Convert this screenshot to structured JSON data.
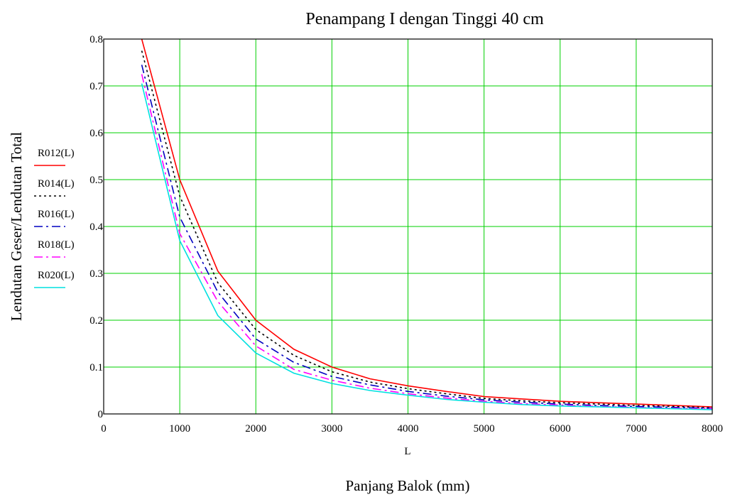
{
  "chart_data": {
    "type": "line",
    "title": "Penampang I dengan Tinggi 40 cm",
    "xlabel": "Panjang Balok (mm)",
    "xvar": "L",
    "ylabel": "Lendutan Geser/Lendutan Total",
    "xlim": [
      0,
      8000
    ],
    "ylim": [
      0,
      0.8
    ],
    "xticks": [
      "0",
      "1000",
      "2000",
      "3000",
      "4000",
      "5000",
      "6000",
      "7000",
      "8000"
    ],
    "yticks": [
      "0",
      "0.1",
      "0.2",
      "0.3",
      "0.4",
      "0.5",
      "0.6",
      "0.7",
      "0.8"
    ],
    "grid": true,
    "legend_position": "left",
    "x": [
      500,
      1000,
      1500,
      2000,
      2500,
      3000,
      3500,
      4000,
      4500,
      5000,
      5500,
      6000,
      6500,
      7000,
      7500,
      8000
    ],
    "series": [
      {
        "name": "R012(L)",
        "color": "#ff0000",
        "dash": "solid",
        "values": [
          0.8,
          0.5,
          0.305,
          0.2,
          0.138,
          0.1,
          0.075,
          0.06,
          0.048,
          0.037,
          0.032,
          0.027,
          0.024,
          0.021,
          0.018,
          0.015
        ]
      },
      {
        "name": "R014(L)",
        "color": "#000000",
        "dash": "dotted",
        "values": [
          0.775,
          0.465,
          0.28,
          0.18,
          0.125,
          0.09,
          0.068,
          0.054,
          0.043,
          0.033,
          0.028,
          0.024,
          0.021,
          0.018,
          0.016,
          0.013
        ]
      },
      {
        "name": "R016(L)",
        "color": "#0000c0",
        "dash": "dashdot",
        "values": [
          0.745,
          0.42,
          0.26,
          0.16,
          0.11,
          0.08,
          0.062,
          0.048,
          0.038,
          0.03,
          0.025,
          0.021,
          0.018,
          0.016,
          0.014,
          0.012
        ]
      },
      {
        "name": "R018(L)",
        "color": "#ff00ff",
        "dash": "dashdot",
        "values": [
          0.725,
          0.385,
          0.24,
          0.145,
          0.095,
          0.072,
          0.055,
          0.043,
          0.034,
          0.027,
          0.022,
          0.019,
          0.016,
          0.014,
          0.012,
          0.011
        ]
      },
      {
        "name": "R020(L)",
        "color": "#00e0e0",
        "dash": "solid",
        "values": [
          0.705,
          0.37,
          0.21,
          0.13,
          0.087,
          0.065,
          0.05,
          0.04,
          0.031,
          0.025,
          0.02,
          0.017,
          0.015,
          0.013,
          0.011,
          0.009
        ]
      }
    ]
  }
}
